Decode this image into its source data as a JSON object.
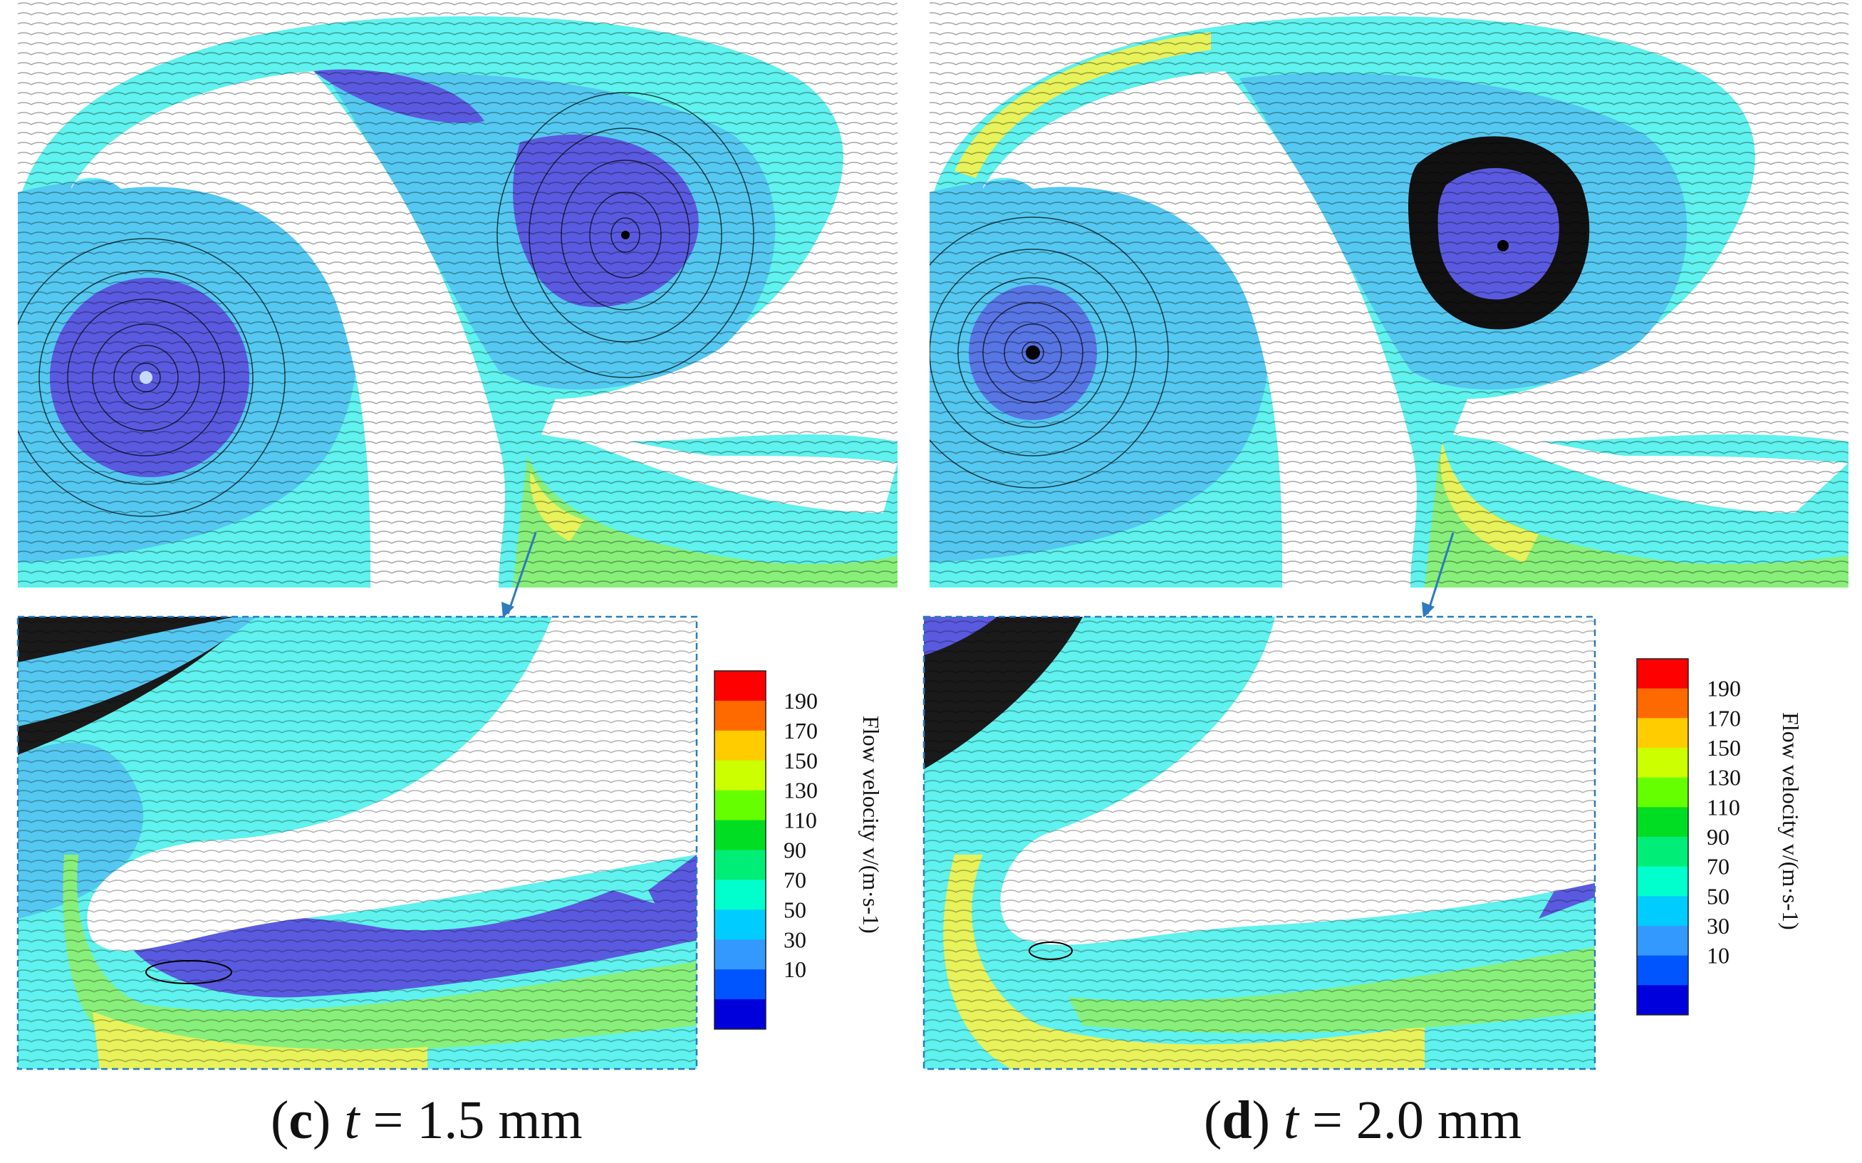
{
  "panels": [
    {
      "id": "c",
      "letter": "c",
      "variable": "t",
      "equals": " = ",
      "value": "1.5 mm",
      "colorbar": {
        "title": "Flow velocity v/(m·s-1)",
        "ticks": [
          "190",
          "170",
          "150",
          "130",
          "110",
          "90",
          "70",
          "50",
          "30",
          "10"
        ]
      }
    },
    {
      "id": "d",
      "letter": "d",
      "variable": "t",
      "equals": " = ",
      "value": "2.0 mm",
      "colorbar": {
        "title": "Flow velocity v/(m·s-1)",
        "ticks": [
          "190",
          "170",
          "150",
          "130",
          "110",
          "90",
          "70",
          "50",
          "30",
          "10"
        ]
      }
    }
  ],
  "colors": {
    "scale": [
      "#ff0000",
      "#ff6a00",
      "#ffcc00",
      "#ccff00",
      "#66ff00",
      "#00dd22",
      "#00ee77",
      "#00ffcc",
      "#00ccff",
      "#3399ff",
      "#0055ff",
      "#0000dd"
    ],
    "low": "#5a5ae0",
    "mid": "#54c8f0",
    "cyan": "#5ff2ee",
    "high": "#e8f25a",
    "green": "#88f07a",
    "streamline": "#000000",
    "zoom_box": "#2a7bc0"
  }
}
